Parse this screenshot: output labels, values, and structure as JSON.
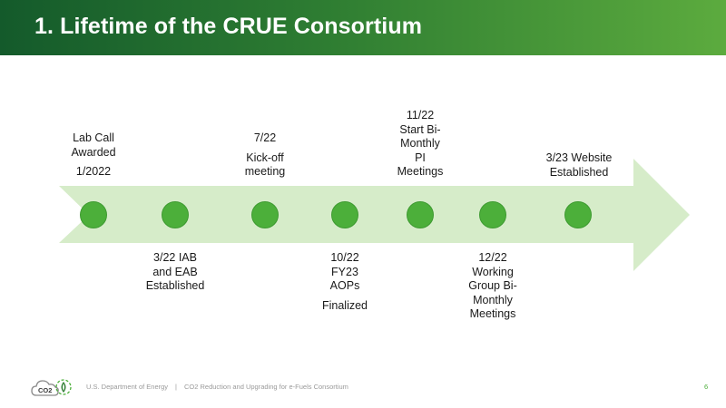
{
  "header": {
    "title": "1. Lifetime of the CRUE Consortium"
  },
  "colors": {
    "header_green": "#145a2b",
    "arrow": "#d6ecc9",
    "dot": "#4caf3a",
    "footer_text": "#9a9a9a"
  },
  "milestones_above": [
    {
      "line1": "Lab Call",
      "line2": "Awarded",
      "line3": "1/2022"
    },
    {
      "line1": "7/22",
      "line2": "Kick-off",
      "line3": "meeting"
    },
    {
      "line1": "11/22",
      "line2": "Start Bi-",
      "line3": "Monthly",
      "line4": "PI",
      "line5": "Meetings"
    },
    {
      "line1": "3/23 Website",
      "line2": "Established"
    }
  ],
  "milestones_below": [
    {
      "line1": "3/22 IAB",
      "line2": "and EAB",
      "line3": "Established"
    },
    {
      "line1": "10/22",
      "line2": "FY23",
      "line3": "AOPs",
      "line4": "Finalized"
    },
    {
      "line1": "12/22",
      "line2": "Working",
      "line3": "Group Bi-",
      "line4": "Monthly",
      "line5": "Meetings"
    }
  ],
  "footer": {
    "logo_text": "CO2",
    "org": "U.S. Department of Energy",
    "separator": "|",
    "consortium": "CO2 Reduction and Upgrading for e-Fuels Consortium",
    "page_number": "6"
  }
}
